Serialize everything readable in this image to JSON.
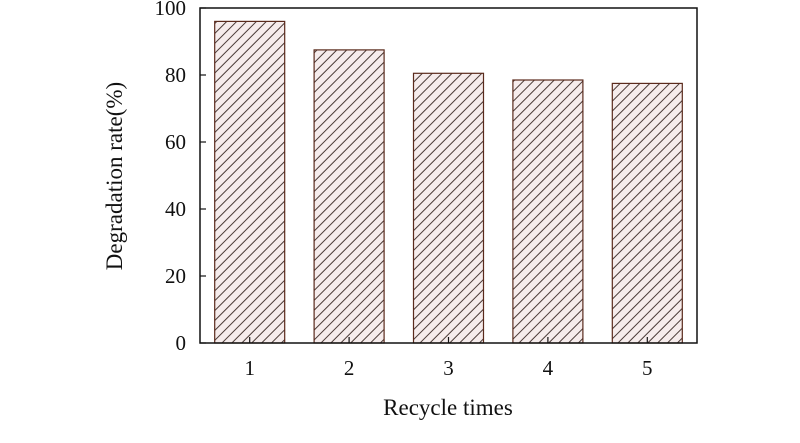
{
  "chart_data": {
    "type": "bar",
    "title": "",
    "xlabel": "Recycle times",
    "ylabel": "Degradation rate(%)",
    "categories": [
      "1",
      "2",
      "3",
      "4",
      "5"
    ],
    "values": [
      96,
      87.5,
      80.5,
      78.5,
      77.5
    ],
    "ylim": [
      0,
      100
    ],
    "yticks": [
      "0",
      "20",
      "40",
      "60",
      "80",
      "100"
    ],
    "grid": false,
    "legend": "none",
    "bar_fill": "hatched",
    "colors": {
      "bar_edge": "#5a2a1c",
      "hatch": "#4a3a36",
      "bar_bg": "#f6ecec",
      "axis": "#111111"
    }
  }
}
